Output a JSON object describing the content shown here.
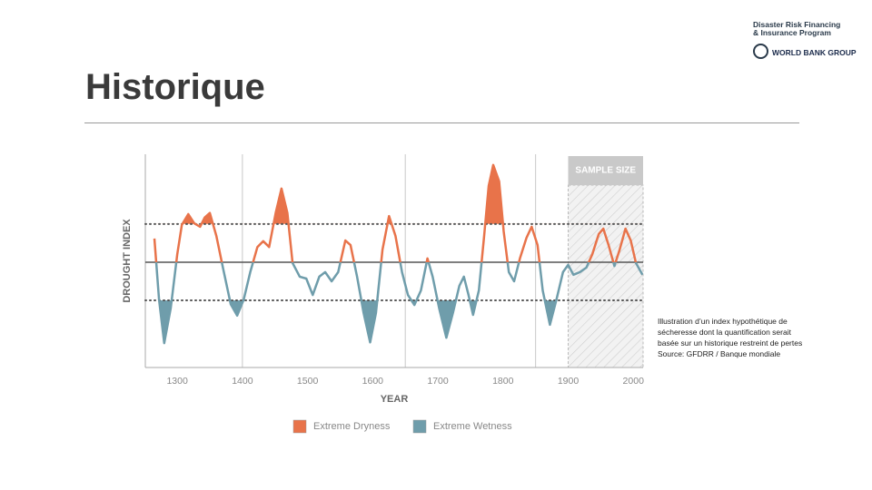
{
  "header": {
    "title": "Historique",
    "logo_line1": "Disaster Risk Financing",
    "logo_line2": "& Insurance Program",
    "logo_org": "WORLD BANK GROUP"
  },
  "chart_data": {
    "type": "line",
    "y_label": "DROUGHT INDEX",
    "x_label": "YEAR",
    "x": [
      1265,
      1272,
      1280,
      1290,
      1300,
      1307,
      1317,
      1326,
      1335,
      1342,
      1350,
      1360,
      1370,
      1382,
      1392,
      1402,
      1412,
      1423,
      1432,
      1441,
      1451,
      1460,
      1469,
      1477,
      1488,
      1498,
      1508,
      1518,
      1527,
      1537,
      1547,
      1558,
      1566,
      1576,
      1586,
      1596,
      1605,
      1615,
      1625,
      1635,
      1645,
      1654,
      1664,
      1674,
      1684,
      1692,
      1702,
      1713,
      1723,
      1733,
      1740,
      1747,
      1754,
      1763,
      1771,
      1778,
      1785,
      1794,
      1801,
      1809,
      1817,
      1826,
      1836,
      1844,
      1853,
      1861,
      1872,
      1882,
      1892,
      1900,
      1908,
      1918,
      1928,
      1937,
      1947,
      1954,
      1962,
      1971,
      1979,
      1988,
      1996,
      2004,
      2014
    ],
    "values": [
      0.62,
      -0.98,
      -2.12,
      -1.2,
      0.2,
      0.98,
      1.26,
      1.02,
      0.93,
      1.17,
      1.29,
      0.69,
      -0.14,
      -1.1,
      -1.4,
      -0.98,
      -0.26,
      0.4,
      0.55,
      0.4,
      1.29,
      1.93,
      1.29,
      -0.02,
      -0.38,
      -0.43,
      -0.86,
      -0.38,
      -0.26,
      -0.5,
      -0.26,
      0.57,
      0.45,
      -0.38,
      -1.33,
      -2.1,
      -1.33,
      0.33,
      1.21,
      0.69,
      -0.26,
      -0.86,
      -1.12,
      -0.74,
      0.1,
      -0.38,
      -1.21,
      -1.98,
      -1.33,
      -0.62,
      -0.38,
      -0.86,
      -1.38,
      -0.74,
      0.69,
      2.0,
      2.55,
      2.12,
      0.81,
      -0.26,
      -0.5,
      0.1,
      0.64,
      0.93,
      0.45,
      -0.74,
      -1.64,
      -0.98,
      -0.26,
      -0.07,
      -0.33,
      -0.26,
      -0.14,
      0.21,
      0.74,
      0.88,
      0.45,
      -0.1,
      0.33,
      0.88,
      0.57,
      -0.02,
      -0.33
    ],
    "xlim": [
      1251,
      2015
    ],
    "ylim": [
      -2.76,
      2.83
    ],
    "xticks": [
      1300,
      1400,
      1500,
      1600,
      1700,
      1800,
      1900,
      2000
    ],
    "vertical_lines": [
      1400,
      1650,
      1850
    ],
    "baseline": 0,
    "thresholds": [
      1,
      -1
    ],
    "sample_region": {
      "label": "SAMPLE SIZE",
      "start": 1900
    },
    "legend": [
      {
        "name": "Extreme Dryness",
        "color": "#e8734a"
      },
      {
        "name": "Extreme Wetness",
        "color": "#6f9dab"
      }
    ]
  },
  "caption": [
    "Illustration d’un index hypothétique de",
    "sécheresse dont la quantification serait",
    "basée sur un historique restreint de pertes",
    "Source: GFDRR / Banque mondiale"
  ]
}
